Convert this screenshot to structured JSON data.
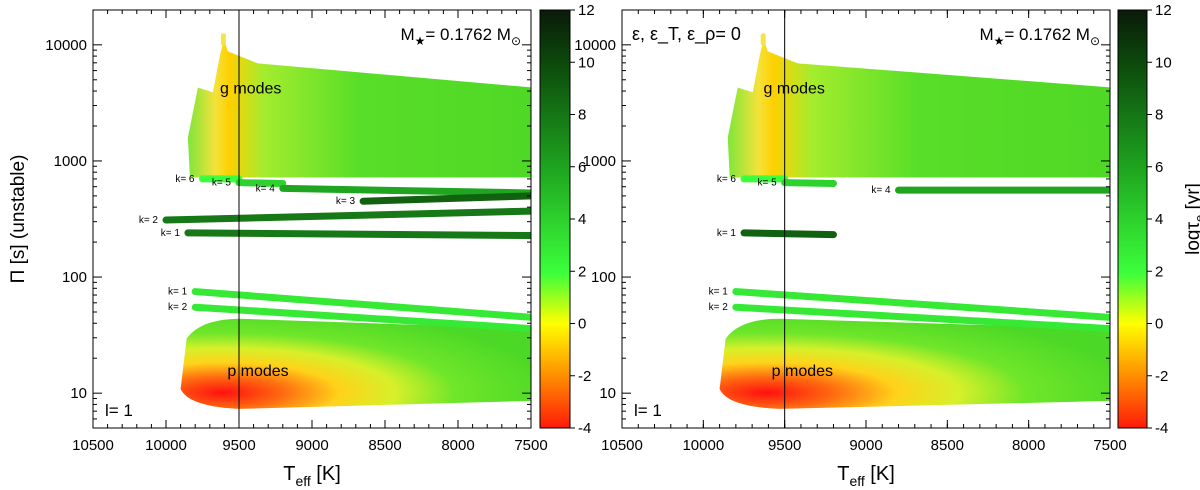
{
  "chart_data": [
    {
      "type": "scatter",
      "id": "left",
      "title_annotation": "M",
      "mass_annotation": {
        "prefix": "M",
        "sub": "★",
        "value": "= 0.1762 M",
        "sun": "⊙"
      },
      "corner_label": "l= 1",
      "model_label": "",
      "xlabel": "T",
      "xlabel_sub": "eff",
      "xlabel_unit": " [K]",
      "ylabel": "Π [s] (unstable)",
      "xlim": [
        10500,
        7500
      ],
      "ylim_log10": [
        0.7,
        4.3
      ],
      "x_ticks": [
        10500,
        10000,
        9500,
        9000,
        8500,
        8000,
        7500
      ],
      "y_ticks": [
        {
          "v": 10,
          "label": "10"
        },
        {
          "v": 100,
          "label": "100"
        },
        {
          "v": 1000,
          "label": "1000"
        },
        {
          "v": 10000,
          "label": "10000"
        }
      ],
      "vertical_line_x": 9500,
      "region_labels": [
        {
          "text": "g modes",
          "x": 9630,
          "y": 3800
        },
        {
          "text": "p modes",
          "x": 9580,
          "y": 14
        }
      ],
      "g_mode_region": {
        "x_start": 9850,
        "x_end": 7500,
        "p_top_left": 9500,
        "p_top_right": 4300,
        "p_bottom": 720
      },
      "p_mode_region": {
        "x_start": 9900,
        "x_end": 7500,
        "p_top": 42,
        "p_bottom": 6
      },
      "series": [
        {
          "name": "k= 6",
          "x": [
            9750,
            9500
          ],
          "y": [
            700,
            700
          ],
          "log_tau": 2
        },
        {
          "name": "k= 5",
          "x": [
            9500,
            9200
          ],
          "y": [
            650,
            640
          ],
          "log_tau": 4
        },
        {
          "name": "k= 4",
          "x": [
            9200,
            7500
          ],
          "y": [
            580,
            530
          ],
          "log_tau": 6
        },
        {
          "name": "k= 3",
          "x": [
            8650,
            7500
          ],
          "y": [
            450,
            500
          ],
          "log_tau": 9
        },
        {
          "name": "k= 2",
          "x": [
            10000,
            7500
          ],
          "y": [
            310,
            370
          ],
          "log_tau": 8
        },
        {
          "name": "k= 1",
          "x": [
            9850,
            7500
          ],
          "y": [
            240,
            228
          ],
          "log_tau": 8
        },
        {
          "name": "k= 1",
          "x": [
            9800,
            7500
          ],
          "y": [
            75,
            45
          ],
          "log_tau": 3
        },
        {
          "name": "k= 2",
          "x": [
            9800,
            7500
          ],
          "y": [
            55,
            36
          ],
          "log_tau": 3
        }
      ],
      "colorbar": {
        "label": "log",
        "label_sub": "e",
        "label_suffix": " [yr]",
        "ticks": [
          -4,
          -2,
          0,
          2,
          4,
          6,
          8,
          10,
          12
        ],
        "range": [
          -4,
          12
        ]
      }
    },
    {
      "type": "scatter",
      "id": "right",
      "mass_annotation": {
        "prefix": "M",
        "sub": "★",
        "value": "= 0.1762 M",
        "sun": "⊙"
      },
      "corner_label": "l= 1",
      "model_label": "ε, ε_T, ε_ρ= 0",
      "xlabel": "T",
      "xlabel_sub": "eff",
      "xlabel_unit": " [K]",
      "ylabel": "",
      "xlim": [
        10500,
        7500
      ],
      "ylim_log10": [
        0.7,
        4.3
      ],
      "x_ticks": [
        10500,
        10000,
        9500,
        9000,
        8500,
        8000,
        7500
      ],
      "y_ticks": [
        {
          "v": 10,
          "label": "10"
        },
        {
          "v": 100,
          "label": "100"
        },
        {
          "v": 1000,
          "label": "1000"
        },
        {
          "v": 10000,
          "label": "10000"
        }
      ],
      "vertical_line_x": 9500,
      "region_labels": [
        {
          "text": "g modes",
          "x": 9630,
          "y": 3800
        },
        {
          "text": "p modes",
          "x": 9580,
          "y": 14
        }
      ],
      "g_mode_region": {
        "x_start": 9850,
        "x_end": 7500,
        "p_top_left": 9500,
        "p_top_right": 4300,
        "p_bottom": 720
      },
      "p_mode_region": {
        "x_start": 9900,
        "x_end": 7500,
        "p_top": 42,
        "p_bottom": 6
      },
      "series": [
        {
          "name": "k= 6",
          "x": [
            9750,
            9500
          ],
          "y": [
            700,
            700
          ],
          "log_tau": 2
        },
        {
          "name": "k= 5",
          "x": [
            9500,
            9200
          ],
          "y": [
            650,
            640
          ],
          "log_tau": 4
        },
        {
          "name": "k= 4",
          "x": [
            8800,
            7500
          ],
          "y": [
            560,
            560
          ],
          "log_tau": 6
        },
        {
          "name": "k= 1",
          "x": [
            9750,
            9200
          ],
          "y": [
            240,
            232
          ],
          "log_tau": 9
        },
        {
          "name": "k= 1",
          "x": [
            9800,
            7500
          ],
          "y": [
            75,
            45
          ],
          "log_tau": 3
        },
        {
          "name": "k= 2",
          "x": [
            9800,
            7500
          ],
          "y": [
            55,
            36
          ],
          "log_tau": 3
        }
      ],
      "colorbar": {
        "label": "log",
        "label_sub": "e",
        "label_suffix": " [yr]",
        "ticks": [
          -4,
          -2,
          0,
          2,
          4,
          6,
          8,
          10,
          12
        ],
        "range": [
          -4,
          12
        ]
      }
    }
  ]
}
